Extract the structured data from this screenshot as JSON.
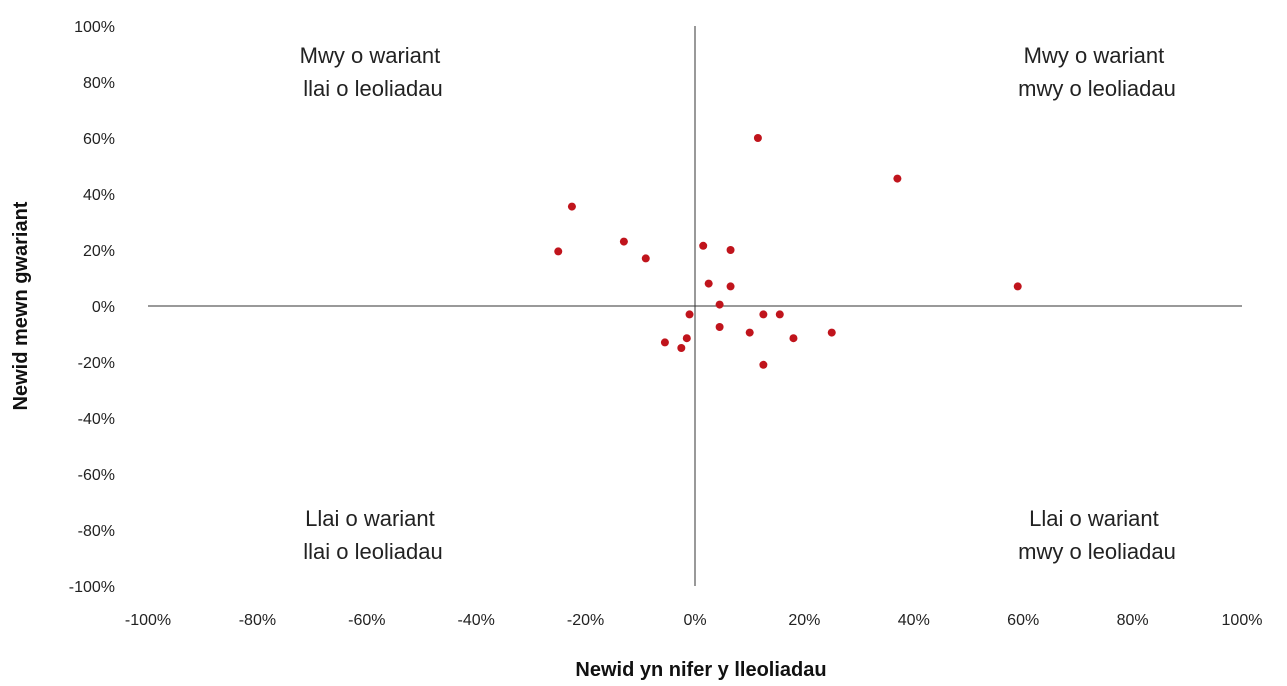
{
  "chart_data": {
    "type": "scatter",
    "xlabel": "Newid yn nifer y lleoliadau",
    "ylabel": "Newid mewn gwariant",
    "xlim": [
      -100,
      100
    ],
    "ylim": [
      -100,
      100
    ],
    "x_ticks": [
      "-100%",
      "-80%",
      "-60%",
      "-40%",
      "-20%",
      "0%",
      "20%",
      "40%",
      "60%",
      "80%",
      "100%"
    ],
    "y_ticks": [
      "100%",
      "80%",
      "60%",
      "40%",
      "20%",
      "0%",
      "-20%",
      "-40%",
      "-60%",
      "-80%",
      "-100%"
    ],
    "grid": false,
    "point_color": "#c0141c",
    "quadrant_labels": {
      "top_left": [
        "Mwy o wariant",
        "llai o leoliadau"
      ],
      "top_right": [
        "Mwy o wariant",
        "mwy o leoliadau"
      ],
      "bottom_left": [
        "Llai o wariant",
        "llai o leoliadau"
      ],
      "bottom_right": [
        "Llai o wariant",
        "mwy o leoliadau"
      ]
    },
    "points": [
      {
        "x": 11.5,
        "y": 60
      },
      {
        "x": 37,
        "y": 45.5
      },
      {
        "x": -22.5,
        "y": 35.5
      },
      {
        "x": -13,
        "y": 23
      },
      {
        "x": -25,
        "y": 19.5
      },
      {
        "x": -9,
        "y": 17
      },
      {
        "x": 1.5,
        "y": 21.5
      },
      {
        "x": 6.5,
        "y": 20
      },
      {
        "x": 59,
        "y": 7
      },
      {
        "x": 2.5,
        "y": 8
      },
      {
        "x": 6.5,
        "y": 7
      },
      {
        "x": 4.5,
        "y": 0.5
      },
      {
        "x": -1,
        "y": -3
      },
      {
        "x": 12.5,
        "y": -3
      },
      {
        "x": 15.5,
        "y": -3
      },
      {
        "x": 4.5,
        "y": -7.5
      },
      {
        "x": 10,
        "y": -9.5
      },
      {
        "x": 25,
        "y": -9.5
      },
      {
        "x": -1.5,
        "y": -11.5
      },
      {
        "x": 18,
        "y": -11.5
      },
      {
        "x": -5.5,
        "y": -13
      },
      {
        "x": -2.5,
        "y": -15
      },
      {
        "x": 12.5,
        "y": -21
      }
    ]
  }
}
